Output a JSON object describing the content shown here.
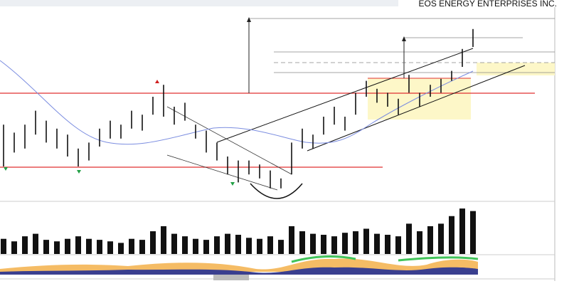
{
  "chart_data": [
    {
      "type": "range-bar",
      "title": "EOS ENERGY ENTERPRISES INC.",
      "color": "#111111",
      "ylim": [
        0,
        100
      ],
      "high": [
        41,
        37,
        41,
        48,
        43,
        39,
        36,
        29,
        32,
        39,
        43,
        41,
        48,
        46,
        55,
        61,
        50,
        52,
        41,
        38,
        32,
        25,
        23,
        23,
        21,
        18,
        14,
        32,
        39,
        36,
        45,
        50,
        45,
        57,
        63,
        59,
        57,
        54,
        66,
        57,
        61,
        64,
        68,
        79,
        89
      ],
      "low": [
        20,
        27,
        29,
        36,
        32,
        29,
        25,
        20,
        23,
        30,
        34,
        34,
        39,
        38,
        46,
        45,
        41,
        43,
        34,
        27,
        23,
        16,
        12,
        16,
        14,
        9,
        9,
        16,
        29,
        29,
        36,
        41,
        38,
        46,
        55,
        52,
        50,
        46,
        57,
        50,
        55,
        57,
        63,
        70,
        80
      ]
    },
    {
      "type": "bar",
      "color": "#111111",
      "ylim": [
        0,
        100
      ],
      "values": [
        30,
        25,
        35,
        40,
        28,
        25,
        30,
        35,
        30,
        28,
        25,
        22,
        30,
        28,
        45,
        55,
        40,
        35,
        30,
        28,
        35,
        40,
        38,
        32,
        30,
        35,
        28,
        55,
        45,
        40,
        38,
        35,
        42,
        45,
        50,
        40,
        38,
        35,
        60,
        45,
        55,
        60,
        75,
        90,
        85
      ]
    }
  ]
}
